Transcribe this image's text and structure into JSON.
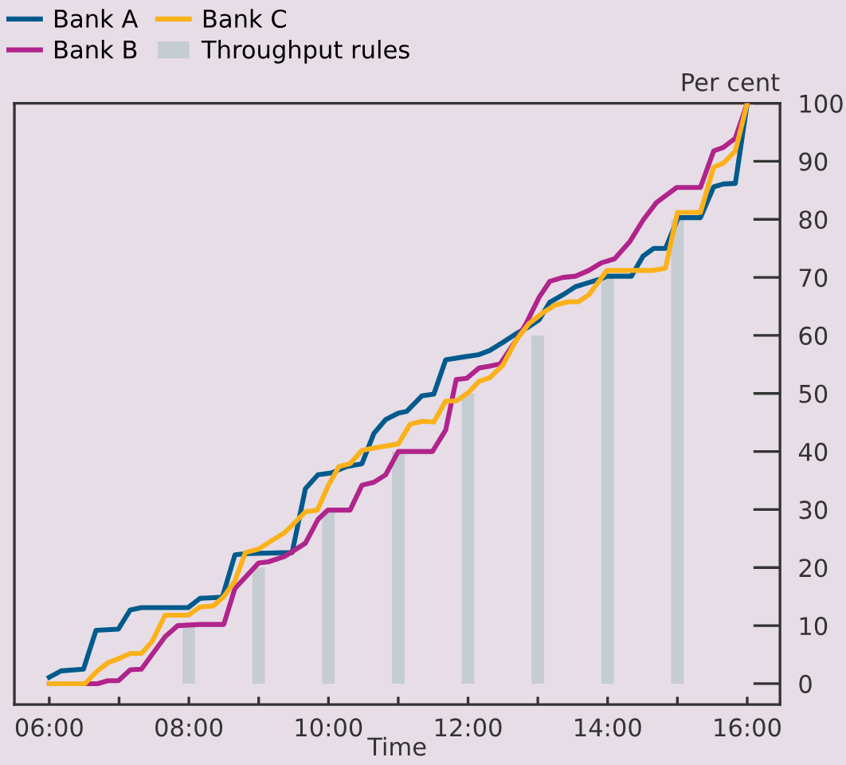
{
  "chart_data": {
    "type": "line",
    "xlabel": "Time",
    "ylabel": "Per cent",
    "xlim": [
      5.5,
      16.47
    ],
    "ylim": [
      -3.6,
      100
    ],
    "xticks": [
      {
        "value": 6,
        "label": "06:00"
      },
      {
        "value": 7,
        "label": null
      },
      {
        "value": 8,
        "label": "08:00"
      },
      {
        "value": 9,
        "label": null
      },
      {
        "value": 10,
        "label": "10:00"
      },
      {
        "value": 11,
        "label": null
      },
      {
        "value": 12,
        "label": "12:00"
      },
      {
        "value": 13,
        "label": null
      },
      {
        "value": 14,
        "label": "14:00"
      },
      {
        "value": 15,
        "label": null
      },
      {
        "value": 16,
        "label": "16:00"
      }
    ],
    "yticks": [
      0,
      10,
      20,
      30,
      40,
      50,
      60,
      70,
      80,
      90,
      100
    ],
    "grid": false,
    "legend": "top left",
    "line_style": "solid",
    "marker": "none",
    "series": [
      {
        "name": "Throughput rules",
        "type": "bar",
        "color": "#c5cdd2",
        "x": [
          8,
          9,
          10,
          11,
          12,
          13,
          14,
          15
        ],
        "values": [
          10,
          20,
          30,
          40,
          50,
          60,
          70,
          80
        ]
      },
      {
        "name": "Bank A",
        "color": "#005a8c",
        "x": [
          6.0,
          6.17,
          6.49,
          6.67,
          6.99,
          7.16,
          7.32,
          7.99,
          8.16,
          8.48,
          8.66,
          8.81,
          9.48,
          9.67,
          9.85,
          10.04,
          10.26,
          10.48,
          10.65,
          10.82,
          11.0,
          11.12,
          11.34,
          11.51,
          11.68,
          11.94,
          12.16,
          12.31,
          12.5,
          12.69,
          12.87,
          13.02,
          13.17,
          13.36,
          13.54,
          13.73,
          13.91,
          13.99,
          14.34,
          14.51,
          14.66,
          14.83,
          15.01,
          15.33,
          15.52,
          15.66,
          15.83,
          16.0
        ],
        "values": [
          1.1,
          2.2,
          2.5,
          9.2,
          9.4,
          12.7,
          13.1,
          13.1,
          14.7,
          14.9,
          22.2,
          22.4,
          22.6,
          33.6,
          36.0,
          36.3,
          37.4,
          37.9,
          43.1,
          45.5,
          46.6,
          46.9,
          49.6,
          49.9,
          55.8,
          56.3,
          56.7,
          57.4,
          58.8,
          60.3,
          61.5,
          62.7,
          65.7,
          67.0,
          68.4,
          69.1,
          69.8,
          70.2,
          70.2,
          73.7,
          75.0,
          75.0,
          80.3,
          80.3,
          85.6,
          86.1,
          86.2,
          100
        ]
      },
      {
        "name": "Bank B",
        "color": "#b0248c",
        "x": [
          6.0,
          6.51,
          6.69,
          6.84,
          6.99,
          7.16,
          7.32,
          7.66,
          7.84,
          8.16,
          8.5,
          8.66,
          9.0,
          9.14,
          9.37,
          9.67,
          9.85,
          9.99,
          10.31,
          10.48,
          10.65,
          10.82,
          11.0,
          11.49,
          11.68,
          11.83,
          11.98,
          12.16,
          12.31,
          12.46,
          12.69,
          12.83,
          13.02,
          13.17,
          13.36,
          13.54,
          13.73,
          13.91,
          14.1,
          14.32,
          14.51,
          14.7,
          14.99,
          15.33,
          15.52,
          15.66,
          15.83,
          16.0
        ],
        "values": [
          0,
          0,
          0,
          0.5,
          0.5,
          2.4,
          2.5,
          8.1,
          10.0,
          10.2,
          10.2,
          16.4,
          20.8,
          21.0,
          21.9,
          24.2,
          28.3,
          29.9,
          29.9,
          34.2,
          34.7,
          36.0,
          40.0,
          40.0,
          43.7,
          52.4,
          52.6,
          54.4,
          54.7,
          55.1,
          59.2,
          62.0,
          66.6,
          69.3,
          70.0,
          70.2,
          71.2,
          72.5,
          73.2,
          76.2,
          79.9,
          82.9,
          85.5,
          85.5,
          91.8,
          92.4,
          94.0,
          100
        ]
      },
      {
        "name": "Bank C",
        "color": "#fbb11a",
        "x": [
          6.0,
          6.51,
          6.69,
          6.84,
          6.99,
          7.16,
          7.32,
          7.47,
          7.66,
          7.99,
          8.16,
          8.35,
          8.5,
          8.66,
          8.81,
          9.0,
          9.18,
          9.37,
          9.67,
          9.84,
          10.0,
          10.15,
          10.31,
          10.48,
          10.65,
          11.0,
          11.17,
          11.34,
          11.51,
          11.68,
          11.83,
          12.0,
          12.16,
          12.31,
          12.5,
          12.69,
          12.87,
          13.06,
          13.24,
          13.43,
          13.58,
          13.73,
          13.99,
          14.32,
          14.66,
          14.83,
          15.0,
          15.33,
          15.52,
          15.66,
          15.83,
          16.0
        ],
        "values": [
          0,
          0,
          2.2,
          3.6,
          4.3,
          5.2,
          5.2,
          7.2,
          11.8,
          11.8,
          13.2,
          13.4,
          15.0,
          17.7,
          22.6,
          23.2,
          24.6,
          26.0,
          29.6,
          29.9,
          34.2,
          37.4,
          37.9,
          40.2,
          40.6,
          41.3,
          44.7,
          45.2,
          45.1,
          48.7,
          48.7,
          50.1,
          52.1,
          52.7,
          54.9,
          59.2,
          62.0,
          63.8,
          65.2,
          65.8,
          65.8,
          67.0,
          71.2,
          71.2,
          71.2,
          71.6,
          81.2,
          81.2,
          89.0,
          89.7,
          91.8,
          100
        ]
      }
    ]
  }
}
